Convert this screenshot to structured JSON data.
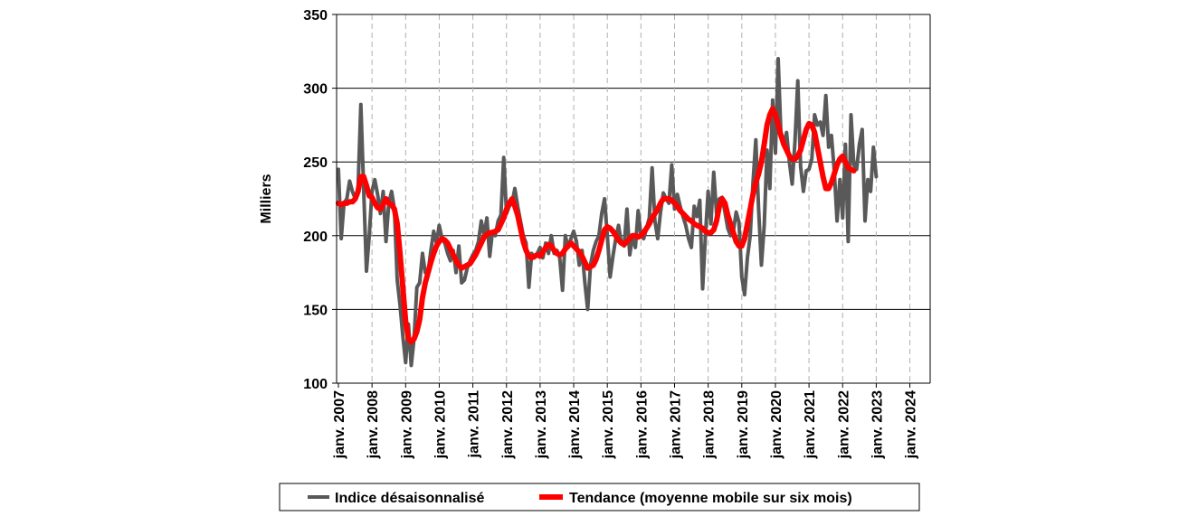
{
  "chart_data": {
    "type": "line",
    "title": "",
    "xlabel": "",
    "ylabel": "Milliers",
    "ylim": [
      100,
      350
    ],
    "yticks": [
      "100",
      "150",
      "200",
      "250",
      "300",
      "350"
    ],
    "x_tick_labels": [
      "janv. 2007",
      "janv. 2008",
      "janv. 2009",
      "janv. 2010",
      "janv. 2011",
      "janv. 2012",
      "janv. 2013",
      "janv. 2014",
      "janv. 2015",
      "janv. 2016",
      "janv. 2017",
      "janv. 2018",
      "janv. 2019",
      "janv. 2020",
      "janv. 2021",
      "janv. 2022",
      "janv. 2023",
      "janv. 2024"
    ],
    "x_start": "2007-01",
    "grid": "horizontal solid lines, vertical dashed lines at each January",
    "legend_position": "bottom",
    "colors": {
      "index": "#595959",
      "trend": "#ff0000"
    },
    "series": [
      {
        "name": "Indice désaisonnalisé",
        "values": [
          245,
          198,
          222,
          225,
          237,
          230,
          225,
          232,
          289,
          232,
          176,
          200,
          230,
          238,
          228,
          215,
          230,
          196,
          222,
          230,
          218,
          170,
          153,
          132,
          114,
          140,
          112,
          130,
          165,
          168,
          188,
          175,
          175,
          190,
          203,
          195,
          207,
          198,
          195,
          188,
          183,
          190,
          175,
          193,
          168,
          170,
          178,
          183,
          187,
          190,
          196,
          210,
          200,
          212,
          186,
          203,
          200,
          210,
          214,
          253,
          215,
          220,
          222,
          232,
          220,
          210,
          200,
          195,
          165,
          188,
          185,
          188,
          192,
          185,
          195,
          188,
          200,
          188,
          190,
          185,
          163,
          200,
          192,
          198,
          203,
          196,
          180,
          190,
          168,
          150,
          180,
          190,
          196,
          200,
          215,
          225,
          200,
          172,
          186,
          198,
          207,
          195,
          193,
          218,
          187,
          200,
          192,
          217,
          200,
          198,
          205,
          212,
          246,
          210,
          198,
          216,
          229,
          225,
          222,
          248,
          218,
          228,
          220,
          213,
          207,
          198,
          192,
          220,
          213,
          224,
          164,
          200,
          230,
          208,
          243,
          215,
          225,
          226,
          216,
          205,
          200,
          203,
          216,
          209,
          172,
          160,
          185,
          200,
          236,
          265,
          218,
          180,
          207,
          258,
          232,
          292,
          256,
          320,
          268,
          262,
          270,
          250,
          235,
          264,
          305,
          247,
          230,
          244,
          245,
          252,
          282,
          275,
          277,
          268,
          295,
          260,
          268,
          244,
          210,
          238,
          212,
          262,
          196,
          282,
          248,
          245,
          262,
          272,
          210,
          238,
          230,
          260,
          240
        ]
      },
      {
        "name": "Tendance (moyenne mobile sur six mois)",
        "values": [
          222,
          221,
          222,
          222,
          223,
          223,
          225,
          230,
          240,
          240,
          234,
          227,
          226,
          222,
          219,
          218,
          221,
          225,
          222,
          221,
          218,
          208,
          188,
          165,
          142,
          130,
          128,
          130,
          135,
          143,
          158,
          168,
          175,
          182,
          188,
          193,
          196,
          198,
          197,
          195,
          191,
          187,
          183,
          180,
          178,
          179,
          180,
          181,
          184,
          187,
          191,
          195,
          199,
          201,
          202,
          202,
          203,
          204,
          208,
          212,
          218,
          222,
          225,
          220,
          214,
          205,
          196,
          190,
          186,
          185,
          186,
          187,
          186,
          189,
          192,
          194,
          193,
          190,
          188,
          187,
          188,
          191,
          193,
          195,
          193,
          191,
          189,
          186,
          182,
          178,
          179,
          180,
          184,
          190,
          197,
          204,
          206,
          205,
          203,
          200,
          197,
          195,
          194,
          196,
          198,
          200,
          200,
          199,
          200,
          202,
          205,
          208,
          212,
          215,
          218,
          222,
          225,
          225,
          225,
          224,
          222,
          220,
          217,
          215,
          213,
          211,
          210,
          208,
          207,
          206,
          205,
          203,
          202,
          202,
          204,
          210,
          220,
          225,
          222,
          214,
          208,
          202,
          196,
          193,
          193,
          198,
          208,
          218,
          228,
          236,
          242,
          250,
          262,
          275,
          282,
          286,
          282,
          275,
          268,
          262,
          258,
          254,
          252,
          252,
          254,
          258,
          265,
          272,
          276,
          275,
          270,
          260,
          250,
          240,
          232,
          232,
          236,
          242,
          248,
          252,
          254,
          250,
          246,
          245,
          244
        ]
      }
    ]
  }
}
